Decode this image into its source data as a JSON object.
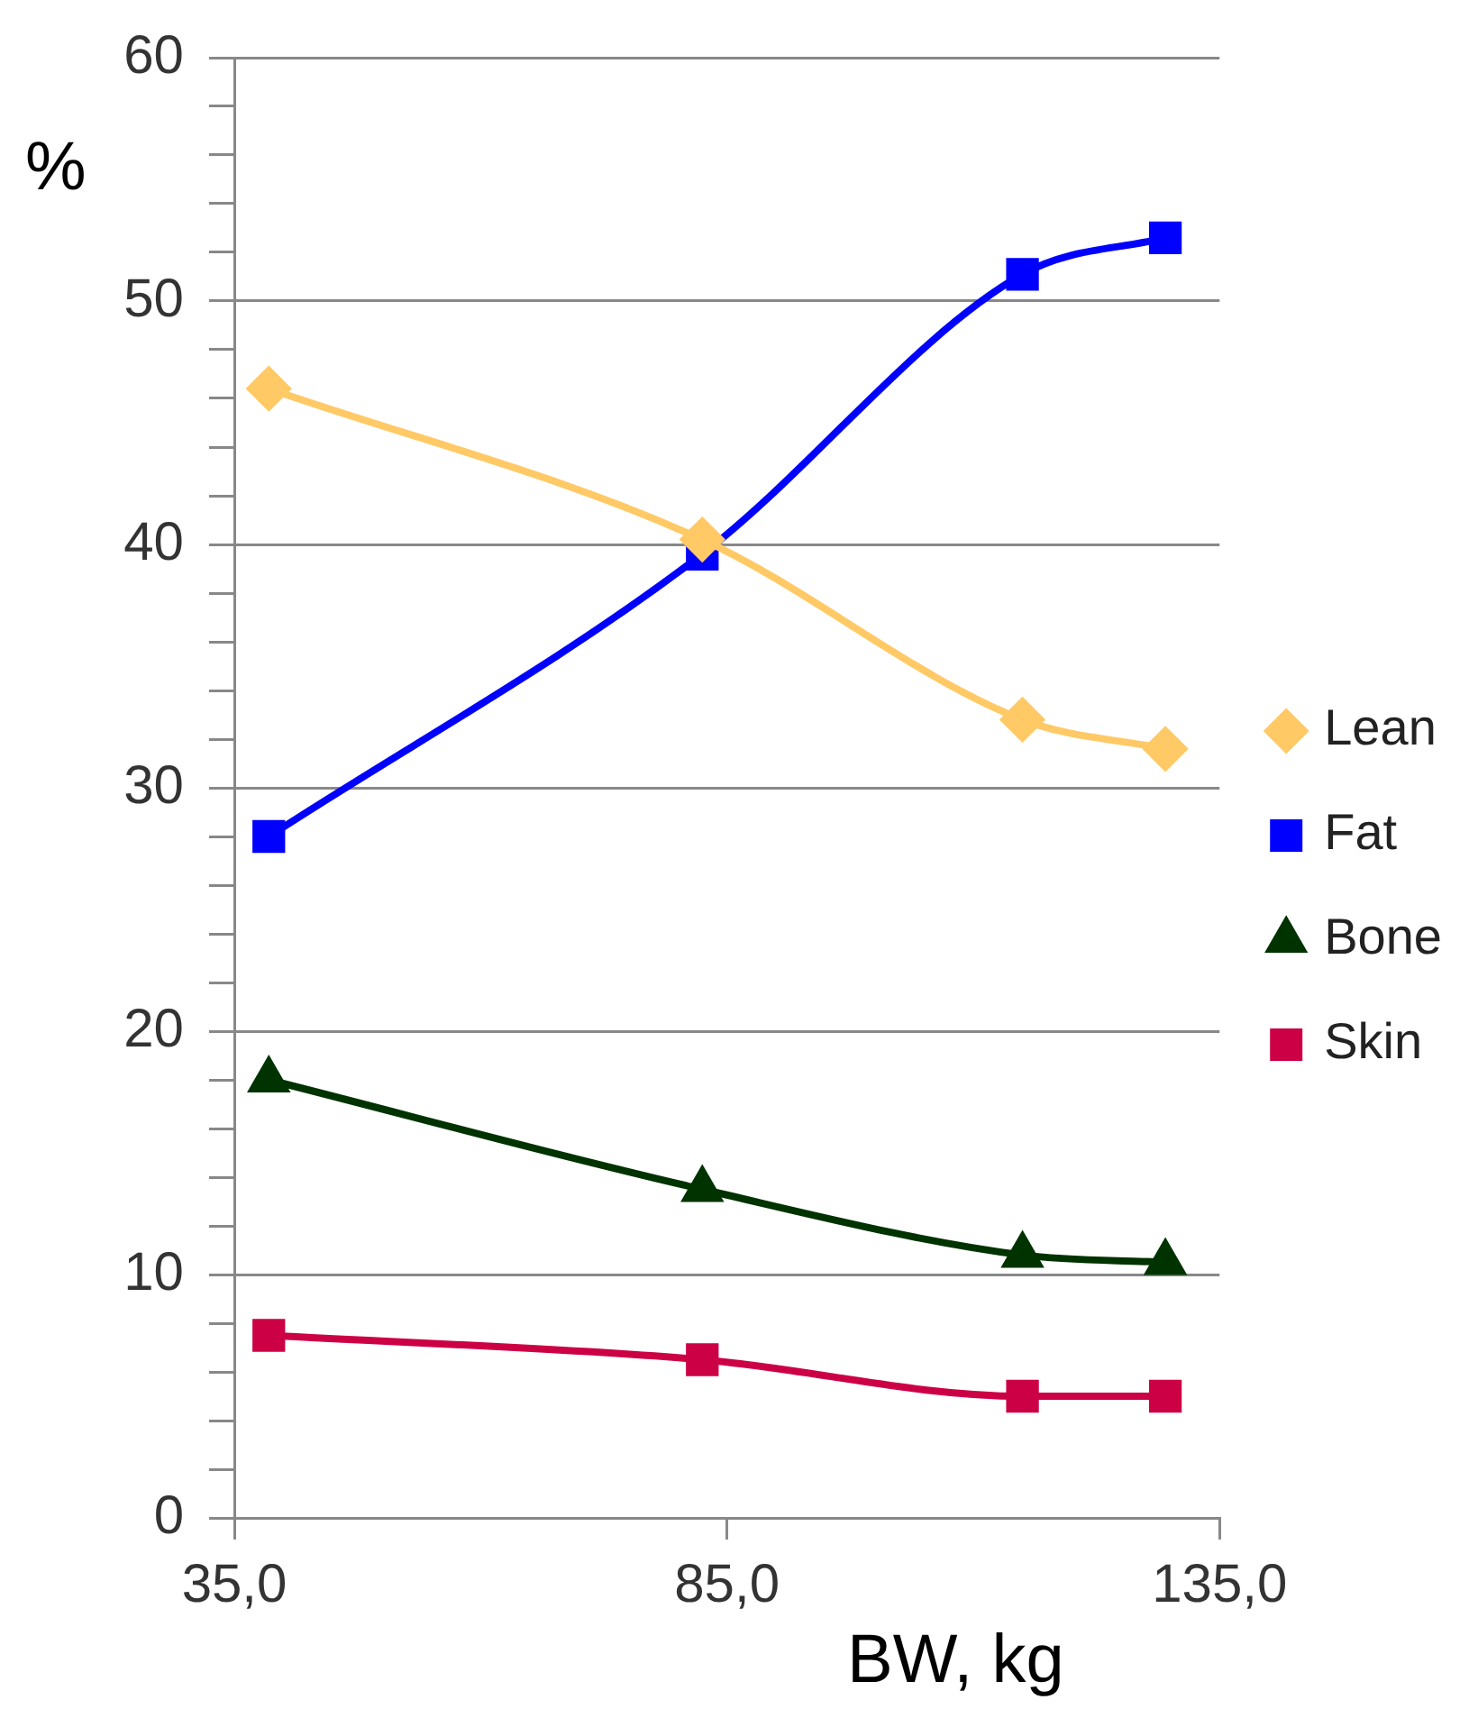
{
  "chart_data": {
    "type": "line",
    "xlabel": "BW, kg",
    "ylabel": "%",
    "x": [
      38.5,
      82.5,
      115,
      129.5
    ],
    "series": [
      {
        "name": "Lean",
        "color": "#ffc966",
        "marker": "diamond",
        "values": [
          46.4,
          40.2,
          32.8,
          31.6
        ]
      },
      {
        "name": "Fat",
        "color": "#0000ff",
        "marker": "square",
        "values": [
          28.0,
          39.6,
          51.1,
          52.6
        ]
      },
      {
        "name": "Bone",
        "color": "#003300",
        "marker": "triangle",
        "values": [
          18.0,
          13.5,
          10.8,
          10.5
        ]
      },
      {
        "name": "Skin",
        "color": "#cc0044",
        "marker": "square",
        "values": [
          7.5,
          6.5,
          5.0,
          5.0
        ]
      }
    ],
    "xlim": [
      35,
      135
    ],
    "xticks": [
      {
        "value": 35,
        "label": "35,0"
      },
      {
        "value": 85,
        "label": "85,0"
      },
      {
        "value": 135,
        "label": "135,0"
      }
    ],
    "ylim": [
      0,
      60
    ],
    "yticks": [
      0,
      {
        "value": 2,
        "label": null
      },
      {
        "value": 4,
        "label": null
      },
      {
        "value": 6,
        "label": null
      },
      {
        "value": 8,
        "label": null
      },
      10,
      {
        "value": 12,
        "label": null
      },
      {
        "value": 14,
        "label": null
      },
      {
        "value": 16,
        "label": null
      },
      {
        "value": 18,
        "label": null
      },
      20,
      {
        "value": 22,
        "label": null
      },
      {
        "value": 24,
        "label": null
      },
      {
        "value": 26,
        "label": null
      },
      {
        "value": 28,
        "label": null
      },
      30,
      {
        "value": 32,
        "label": null
      },
      {
        "value": 34,
        "label": null
      },
      {
        "value": 36,
        "label": null
      },
      {
        "value": 38,
        "label": null
      },
      40,
      {
        "value": 42,
        "label": null
      },
      {
        "value": 44,
        "label": null
      },
      {
        "value": 46,
        "label": null
      },
      {
        "value": 48,
        "label": null
      },
      50,
      {
        "value": 52,
        "label": null
      },
      {
        "value": 54,
        "label": null
      },
      {
        "value": 56,
        "label": null
      },
      {
        "value": 58,
        "label": null
      },
      60
    ],
    "grid": "y",
    "legend": "right",
    "line_style": "solid"
  }
}
